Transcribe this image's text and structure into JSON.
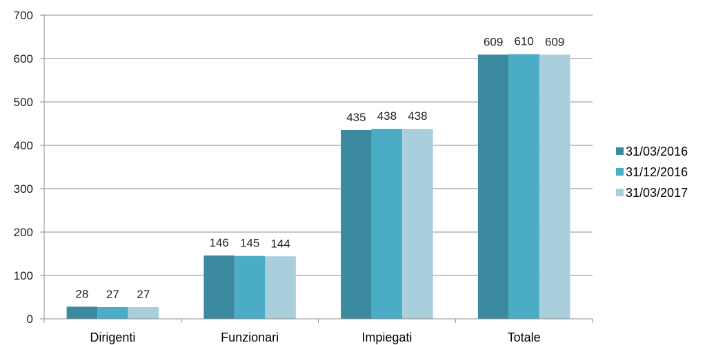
{
  "chart_data": {
    "type": "bar",
    "categories": [
      "Dirigenti",
      "Funzionari",
      "Impiegati",
      "Totale"
    ],
    "series": [
      {
        "name": "31/03/2016",
        "values": [
          28,
          146,
          435,
          609
        ],
        "color": "#3c8aa0"
      },
      {
        "name": "31/12/2016",
        "values": [
          27,
          145,
          438,
          610
        ],
        "color": "#4bacc6"
      },
      {
        "name": "31/03/2017",
        "values": [
          27,
          144,
          438,
          609
        ],
        "color": "#a9cfdd"
      }
    ],
    "ylim": [
      0,
      700
    ],
    "yticks": [
      0,
      100,
      200,
      300,
      400,
      500,
      600,
      700
    ],
    "grid": true,
    "legend_position": "right",
    "data_labels": true
  }
}
